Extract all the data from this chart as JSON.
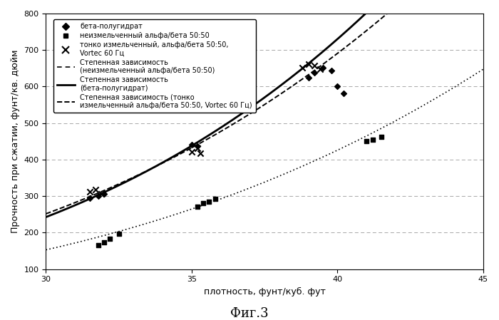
{
  "title": "",
  "fig_label": "Фиг.3",
  "xlabel": "плотность, фунт/куб. фут",
  "ylabel": "Прочность при сжатии, фунт/кв. дюйм",
  "xlim": [
    30,
    45
  ],
  "ylim": [
    100,
    800
  ],
  "xticks": [
    30,
    35,
    40,
    45
  ],
  "yticks": [
    100,
    200,
    300,
    400,
    500,
    600,
    700,
    800
  ],
  "beta_scatter": [
    [
      31.5,
      295
    ],
    [
      31.8,
      300
    ],
    [
      32.0,
      307
    ],
    [
      35.0,
      440
    ],
    [
      35.2,
      437
    ],
    [
      39.0,
      625
    ],
    [
      39.2,
      638
    ],
    [
      39.5,
      652
    ],
    [
      39.8,
      643
    ],
    [
      40.0,
      600
    ],
    [
      40.2,
      582
    ]
  ],
  "unground_scatter": [
    [
      31.8,
      165
    ],
    [
      32.0,
      173
    ],
    [
      32.2,
      183
    ],
    [
      32.5,
      197
    ],
    [
      35.2,
      272
    ],
    [
      35.4,
      280
    ],
    [
      35.6,
      285
    ],
    [
      35.8,
      292
    ],
    [
      41.0,
      450
    ],
    [
      41.2,
      455
    ],
    [
      41.5,
      462
    ]
  ],
  "fineground_scatter": [
    [
      31.5,
      312
    ],
    [
      31.7,
      318
    ],
    [
      31.9,
      306
    ],
    [
      35.0,
      422
    ],
    [
      35.2,
      432
    ],
    [
      35.3,
      418
    ],
    [
      38.8,
      652
    ],
    [
      39.0,
      662
    ],
    [
      39.2,
      658
    ],
    [
      39.4,
      648
    ]
  ],
  "legend_labels": [
    "бета-полугидрат",
    "неизмельченный альфа/бета 50:50",
    "тонко измельченный, альфа/бета 50:50,\nVortec 60 Гц",
    "Степенная зависимость\n(неизмельченный альфа/бета 50:50)",
    "Степенная зависимость\n(бета-полугидрат)",
    "Степенная зависимость (тонко\nизмельченный альфа/бета 50:50, Vortec 60 Гц)"
  ],
  "a_beta": 0.00027,
  "b_beta": 4.12,
  "a_unground": 2.2e-09,
  "b_unground": 7.5,
  "a_fineground": 0.00035,
  "b_fineground": 4.05
}
